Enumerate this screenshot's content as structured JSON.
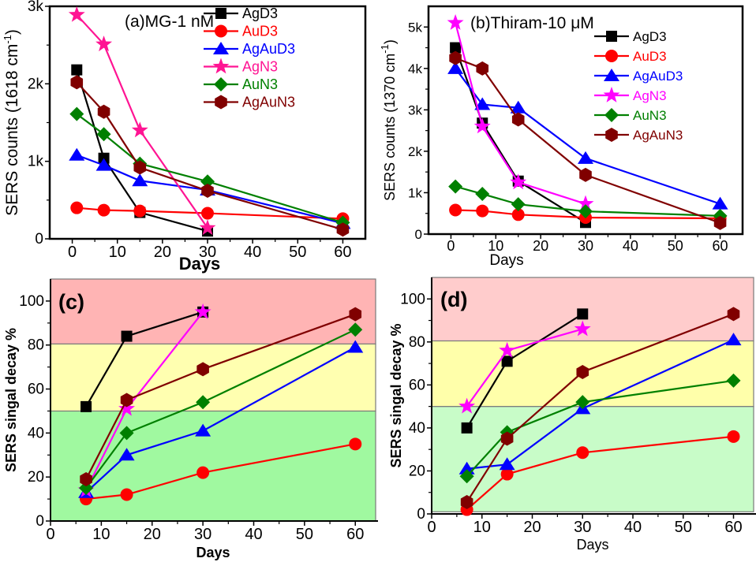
{
  "chart_data": [
    {
      "panel": "a",
      "type": "line",
      "title": "(a)MG-1 nM",
      "xlabel": "Days",
      "ylabel": "SERS counts (1618 cm-1)",
      "ylabel_parts": [
        "SERS counts (1618 cm",
        "-1",
        ")"
      ],
      "xlim": [
        -5,
        65
      ],
      "ylim": [
        0,
        3000
      ],
      "xticks": [
        0,
        10,
        20,
        30,
        40,
        50,
        60
      ],
      "yticks": [
        0,
        1000,
        2000,
        3000
      ],
      "ytick_labels": [
        "0",
        "1k",
        "2k",
        "3k"
      ],
      "legend": "top-right",
      "bands": [],
      "series": [
        {
          "name": "AgD3",
          "color": "#000000",
          "marker": "square",
          "x": [
            1,
            7,
            15,
            30
          ],
          "y": [
            2180,
            1040,
            340,
            100
          ]
        },
        {
          "name": "AuD3",
          "color": "#ff0000",
          "marker": "circle",
          "x": [
            1,
            7,
            15,
            30,
            60
          ],
          "y": [
            400,
            370,
            360,
            330,
            260
          ]
        },
        {
          "name": "AgAuD3",
          "color": "#0000ff",
          "marker": "triangle",
          "x": [
            1,
            7,
            15,
            30,
            60
          ],
          "y": [
            1080,
            950,
            750,
            630,
            200
          ]
        },
        {
          "name": "AgN3",
          "color": "#ff1493",
          "marker": "star",
          "x": [
            1,
            7,
            15,
            30
          ],
          "y": [
            2890,
            2510,
            1400,
            140
          ]
        },
        {
          "name": "AuN3",
          "color": "#008000",
          "marker": "diamond",
          "x": [
            1,
            7,
            15,
            30,
            60
          ],
          "y": [
            1610,
            1350,
            970,
            740,
            210
          ]
        },
        {
          "name": "AgAuN3",
          "color": "#800000",
          "marker": "hexagon",
          "x": [
            1,
            7,
            15,
            30,
            60
          ],
          "y": [
            2020,
            1640,
            920,
            620,
            120
          ]
        }
      ]
    },
    {
      "panel": "b",
      "type": "line",
      "title": "(b)Thiram-10 μM",
      "xlabel": "Days",
      "ylabel": "SERS counts (1370 cm-1)",
      "ylabel_parts": [
        "SERS counts (1370 cm",
        "-1",
        ")"
      ],
      "xlim": [
        -5,
        65
      ],
      "ylim": [
        0,
        5500
      ],
      "xticks": [
        0,
        10,
        20,
        30,
        40,
        50,
        60
      ],
      "yticks": [
        0,
        1000,
        2000,
        3000,
        4000,
        5000
      ],
      "ytick_labels": [
        "0",
        "1k",
        "2k",
        "3k",
        "4k",
        "5k"
      ],
      "legend": "top-right",
      "bands": [],
      "series": [
        {
          "name": "AgD3",
          "color": "#000000",
          "marker": "square",
          "x": [
            1,
            7,
            15,
            30
          ],
          "y": [
            4500,
            2680,
            1280,
            280
          ]
        },
        {
          "name": "AuD3",
          "color": "#ff0000",
          "marker": "circle",
          "x": [
            1,
            7,
            15,
            30,
            60
          ],
          "y": [
            580,
            560,
            470,
            400,
            380
          ]
        },
        {
          "name": "AgAuD3",
          "color": "#0000ff",
          "marker": "triangle",
          "x": [
            1,
            7,
            15,
            30,
            60
          ],
          "y": [
            4000,
            3130,
            3050,
            1830,
            730
          ]
        },
        {
          "name": "AgN3",
          "color": "#ff00ff",
          "marker": "star",
          "x": [
            1,
            7,
            15,
            30
          ],
          "y": [
            5100,
            2600,
            1250,
            730
          ]
        },
        {
          "name": "AuN3",
          "color": "#008000",
          "marker": "diamond",
          "x": [
            1,
            7,
            15,
            30,
            60
          ],
          "y": [
            1150,
            970,
            720,
            550,
            440
          ]
        },
        {
          "name": "AgAuN3",
          "color": "#800000",
          "marker": "hexagon",
          "x": [
            1,
            7,
            15,
            30,
            60
          ],
          "y": [
            4250,
            4000,
            2770,
            1430,
            270
          ]
        }
      ]
    },
    {
      "panel": "c",
      "type": "line",
      "title": "(c)",
      "xlabel": "Days",
      "ylabel": "SERS singal decay %",
      "xlim": [
        0,
        64
      ],
      "ylim": [
        0,
        110
      ],
      "xticks": [
        0,
        10,
        20,
        30,
        40,
        50,
        60
      ],
      "yticks": [
        0,
        20,
        40,
        60,
        80,
        100
      ],
      "ytick_labels": [
        "0",
        "20",
        "40",
        "60",
        "80",
        "100"
      ],
      "legend": "none",
      "bands": [
        {
          "from": 0,
          "to": 50,
          "color": "#a0f9a0"
        },
        {
          "from": 50,
          "to": 80.5,
          "color": "#ffffb0"
        },
        {
          "from": 80.5,
          "to": 110,
          "color": "#ffb4b4"
        }
      ],
      "series": [
        {
          "name": "AgD3",
          "color": "#000000",
          "marker": "square",
          "x": [
            7,
            15,
            30
          ],
          "y": [
            52,
            84,
            95
          ]
        },
        {
          "name": "AuD3",
          "color": "#ff0000",
          "marker": "circle",
          "x": [
            7,
            15,
            30,
            60
          ],
          "y": [
            10,
            12,
            22,
            35
          ]
        },
        {
          "name": "AgAuD3",
          "color": "#0000ff",
          "marker": "triangle",
          "x": [
            7,
            15,
            30,
            60
          ],
          "y": [
            13,
            30,
            41,
            79
          ]
        },
        {
          "name": "AgN3",
          "color": "#ff00ff",
          "marker": "star",
          "x": [
            7,
            15,
            30
          ],
          "y": [
            14,
            51,
            95
          ]
        },
        {
          "name": "AuN3",
          "color": "#008000",
          "marker": "diamond",
          "x": [
            7,
            15,
            30,
            60
          ],
          "y": [
            15,
            40,
            54,
            87
          ]
        },
        {
          "name": "AgAuN3",
          "color": "#800000",
          "marker": "hexagon",
          "x": [
            7,
            15,
            30,
            60
          ],
          "y": [
            19,
            55,
            69,
            94
          ]
        }
      ]
    },
    {
      "panel": "d",
      "type": "line",
      "title": "(d)",
      "xlabel": "Days",
      "ylabel": "SERS singal decay %",
      "xlim": [
        0,
        64
      ],
      "ylim": [
        0,
        110
      ],
      "xticks": [
        0,
        10,
        20,
        30,
        40,
        50,
        60
      ],
      "yticks": [
        0,
        20,
        40,
        60,
        80,
        100
      ],
      "ytick_labels": [
        "0",
        "20",
        "40",
        "60",
        "80",
        "100"
      ],
      "legend": "none",
      "bands": [
        {
          "from": 1,
          "to": 50,
          "color": "#c8fcc8"
        },
        {
          "from": 50,
          "to": 80.5,
          "color": "#ffffaa"
        },
        {
          "from": 80.5,
          "to": 110,
          "color": "#ffcccc"
        }
      ],
      "series": [
        {
          "name": "AgD3",
          "color": "#000000",
          "marker": "square",
          "x": [
            7,
            15,
            30
          ],
          "y": [
            40,
            71,
            93
          ]
        },
        {
          "name": "AuD3",
          "color": "#ff0000",
          "marker": "circle",
          "x": [
            7,
            15,
            30,
            60
          ],
          "y": [
            2,
            18.5,
            28.5,
            36
          ]
        },
        {
          "name": "AgAuD3",
          "color": "#0000ff",
          "marker": "triangle",
          "x": [
            7,
            15,
            30,
            60
          ],
          "y": [
            21,
            23,
            49,
            81
          ]
        },
        {
          "name": "AgN3",
          "color": "#ff00ff",
          "marker": "star",
          "x": [
            7,
            15,
            30
          ],
          "y": [
            50,
            76,
            86
          ]
        },
        {
          "name": "AuN3",
          "color": "#008000",
          "marker": "diamond",
          "x": [
            7,
            15,
            30,
            60
          ],
          "y": [
            17.5,
            38,
            52,
            62
          ]
        },
        {
          "name": "AgAuN3",
          "color": "#800000",
          "marker": "hexagon",
          "x": [
            7,
            15,
            30,
            60
          ],
          "y": [
            5.5,
            35,
            66,
            93
          ]
        }
      ]
    }
  ]
}
